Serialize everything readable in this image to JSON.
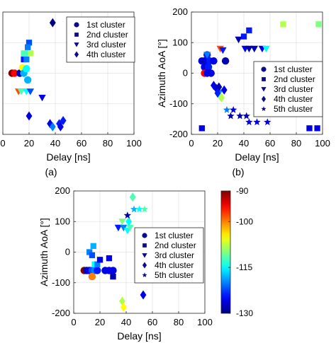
{
  "colorbar": {
    "ticks": [
      -90,
      -100,
      -115,
      -130
    ],
    "range": [
      -130,
      -90
    ]
  },
  "chart_data": [
    {
      "id": "a",
      "type": "scatter",
      "panel_label": "(a)",
      "xlabel": "Delay [ns]",
      "ylabel": "",
      "xlim": [
        0,
        100
      ],
      "ylim": [
        -200,
        200
      ],
      "xticks": [
        0,
        20,
        40,
        60,
        80,
        100
      ],
      "yticks": [],
      "grid": true,
      "legend_position": "top-right",
      "legend": [
        "1st cluster",
        "2nd cluster",
        "3rd cluster",
        "4th cluster"
      ],
      "series": [
        {
          "name": "1st cluster",
          "marker": "circle",
          "points": [
            {
              "x": 7,
              "y": 0,
              "c": -90
            },
            {
              "x": 9,
              "y": 0,
              "c": -95
            },
            {
              "x": 13,
              "y": 0,
              "c": -128
            },
            {
              "x": 15,
              "y": 18,
              "c": -105
            },
            {
              "x": 16,
              "y": 0,
              "c": -118
            },
            {
              "x": 18,
              "y": 15,
              "c": -115
            },
            {
              "x": 19,
              "y": -22,
              "c": -118
            }
          ]
        },
        {
          "name": "2nd cluster",
          "marker": "square",
          "points": [
            {
              "x": 20,
              "y": 100,
              "c": -122
            },
            {
              "x": 19,
              "y": 85,
              "c": -120
            },
            {
              "x": 18,
              "y": 65,
              "c": -115
            },
            {
              "x": 16,
              "y": 65,
              "c": -112
            },
            {
              "x": 21,
              "y": 65,
              "c": -108
            },
            {
              "x": 16,
              "y": 45,
              "c": -124
            },
            {
              "x": 18,
              "y": 45,
              "c": -120
            }
          ]
        },
        {
          "name": "3rd cluster",
          "marker": "triangle",
          "points": [
            {
              "x": 12,
              "y": -60,
              "c": -98
            },
            {
              "x": 14,
              "y": -60,
              "c": -112
            },
            {
              "x": 18,
              "y": -60,
              "c": -115
            },
            {
              "x": 21,
              "y": -60,
              "c": -122
            },
            {
              "x": 30,
              "y": -80,
              "c": -126
            }
          ]
        },
        {
          "name": "4th cluster",
          "marker": "diamond",
          "points": [
            {
              "x": 38,
              "y": 165,
              "c": -130
            },
            {
              "x": 20,
              "y": -140,
              "c": -126
            },
            {
              "x": 36,
              "y": -165,
              "c": -126
            },
            {
              "x": 38,
              "y": -175,
              "c": -120
            },
            {
              "x": 43,
              "y": -165,
              "c": -124
            },
            {
              "x": 44,
              "y": -175,
              "c": -126
            },
            {
              "x": 46,
              "y": -155,
              "c": -124
            }
          ]
        }
      ]
    },
    {
      "id": "b",
      "type": "scatter",
      "panel_label": "(b)",
      "xlabel": "Delay [ns]",
      "ylabel": "Azimuth AoA [°]",
      "xlim": [
        0,
        100
      ],
      "ylim": [
        -200,
        200
      ],
      "xticks": [
        0,
        20,
        40,
        60,
        80,
        100
      ],
      "yticks": [
        -200,
        -100,
        0,
        100,
        200
      ],
      "grid": true,
      "legend_position": "bottom-right",
      "legend": [
        "1st cluster",
        "2nd cluster",
        "3rd cluster",
        "4th cluster",
        "5th cluster"
      ],
      "series": [
        {
          "name": "1st cluster",
          "marker": "circle",
          "points": [
            {
              "x": 8,
              "y": 40,
              "c": -126
            },
            {
              "x": 10,
              "y": 40,
              "c": -128
            },
            {
              "x": 12,
              "y": 40,
              "c": -126
            },
            {
              "x": 14,
              "y": 40,
              "c": -124
            },
            {
              "x": 17,
              "y": 40,
              "c": -126
            },
            {
              "x": 10,
              "y": 20,
              "c": -126
            },
            {
              "x": 13,
              "y": 20,
              "c": -124
            },
            {
              "x": 10,
              "y": 0,
              "c": -95
            },
            {
              "x": 12,
              "y": 0,
              "c": -126
            },
            {
              "x": 15,
              "y": 0,
              "c": -126
            },
            {
              "x": 26,
              "y": 40,
              "c": -128
            },
            {
              "x": 12,
              "y": 60,
              "c": -124
            }
          ]
        },
        {
          "name": "2nd cluster",
          "marker": "square",
          "points": [
            {
              "x": 8,
              "y": -180,
              "c": -126
            },
            {
              "x": 40,
              "y": 120,
              "c": -124
            },
            {
              "x": 44,
              "y": 140,
              "c": -124
            },
            {
              "x": 70,
              "y": 160,
              "c": -108
            },
            {
              "x": 97,
              "y": 160,
              "c": -110
            },
            {
              "x": 90,
              "y": -180,
              "c": -126
            },
            {
              "x": 96,
              "y": -180,
              "c": -126
            }
          ]
        },
        {
          "name": "3rd cluster",
          "marker": "triangle",
          "points": [
            {
              "x": 12,
              "y": 60,
              "c": -120
            },
            {
              "x": 22,
              "y": 80,
              "c": -98
            },
            {
              "x": 24,
              "y": 75,
              "c": -124
            },
            {
              "x": 36,
              "y": 110,
              "c": -128
            },
            {
              "x": 41,
              "y": 80,
              "c": -126
            },
            {
              "x": 44,
              "y": 80,
              "c": -128
            },
            {
              "x": 48,
              "y": 80,
              "c": -128
            },
            {
              "x": 54,
              "y": 80,
              "c": -126
            },
            {
              "x": 57,
              "y": 80,
              "c": -115
            }
          ]
        },
        {
          "name": "4th cluster",
          "marker": "diamond",
          "points": [
            {
              "x": 17,
              "y": -40,
              "c": -126
            },
            {
              "x": 19,
              "y": -50,
              "c": -126
            },
            {
              "x": 21,
              "y": -60,
              "c": -120
            },
            {
              "x": 22,
              "y": -75,
              "c": -112
            },
            {
              "x": 23,
              "y": -80,
              "c": -108
            },
            {
              "x": 21,
              "y": -45,
              "c": -128
            },
            {
              "x": 25,
              "y": -55,
              "c": -126
            },
            {
              "x": 20,
              "y": -65,
              "c": -124
            }
          ]
        },
        {
          "name": "5th cluster",
          "marker": "star",
          "points": [
            {
              "x": 27,
              "y": -120,
              "c": -120
            },
            {
              "x": 32,
              "y": -120,
              "c": -126
            },
            {
              "x": 30,
              "y": -140,
              "c": -128
            },
            {
              "x": 37,
              "y": -140,
              "c": -128
            },
            {
              "x": 42,
              "y": -140,
              "c": -128
            },
            {
              "x": 44,
              "y": -160,
              "c": -126
            },
            {
              "x": 50,
              "y": -160,
              "c": -126
            },
            {
              "x": 58,
              "y": -160,
              "c": -126
            }
          ]
        }
      ]
    },
    {
      "id": "c",
      "type": "scatter",
      "panel_label": "",
      "xlabel": "Delay [ns]",
      "ylabel": "Azimuth AoA [°]",
      "xlim": [
        0,
        100
      ],
      "ylim": [
        -200,
        200
      ],
      "xticks": [
        0,
        20,
        40,
        60,
        80,
        100
      ],
      "yticks": [
        -200,
        -100,
        0,
        100,
        200
      ],
      "grid": true,
      "legend_position": "center-right",
      "legend": [
        "1st cluster",
        "2nd cluster",
        "3rd cluster",
        "4th cluster",
        "5th cluster"
      ],
      "series": [
        {
          "name": "1st cluster",
          "marker": "circle",
          "points": [
            {
              "x": 8,
              "y": -60,
              "c": -90
            },
            {
              "x": 10,
              "y": -60,
              "c": -128
            },
            {
              "x": 12,
              "y": -60,
              "c": -126
            },
            {
              "x": 14,
              "y": -60,
              "c": -122
            },
            {
              "x": 16,
              "y": -60,
              "c": -120
            },
            {
              "x": 18,
              "y": -60,
              "c": -124
            },
            {
              "x": 14,
              "y": -80,
              "c": -100
            },
            {
              "x": 24,
              "y": -60,
              "c": -126
            },
            {
              "x": 27,
              "y": -60,
              "c": -126
            },
            {
              "x": 30,
              "y": -60,
              "c": -126
            }
          ]
        },
        {
          "name": "2nd cluster",
          "marker": "square",
          "points": [
            {
              "x": 12,
              "y": 0,
              "c": -120
            },
            {
              "x": 15,
              "y": 20,
              "c": -118
            },
            {
              "x": 14,
              "y": -10,
              "c": -122
            },
            {
              "x": 16,
              "y": -40,
              "c": -115
            },
            {
              "x": 18,
              "y": -40,
              "c": -120
            },
            {
              "x": 20,
              "y": -25,
              "c": -126
            },
            {
              "x": 27,
              "y": -20,
              "c": -126
            },
            {
              "x": 30,
              "y": -80,
              "c": -128
            }
          ]
        },
        {
          "name": "3rd cluster",
          "marker": "triangle",
          "points": [
            {
              "x": 34,
              "y": 80,
              "c": -124
            },
            {
              "x": 38,
              "y": 80,
              "c": -120
            },
            {
              "x": 41,
              "y": 70,
              "c": -115
            },
            {
              "x": 43,
              "y": 80,
              "c": -112
            },
            {
              "x": 37,
              "y": 100,
              "c": -110
            }
          ]
        },
        {
          "name": "4th cluster",
          "marker": "diamond",
          "points": [
            {
              "x": 45,
              "y": 180,
              "c": -112
            },
            {
              "x": 42,
              "y": 100,
              "c": -115
            },
            {
              "x": 37,
              "y": -160,
              "c": -108
            },
            {
              "x": 38,
              "y": -180,
              "c": -105
            },
            {
              "x": 53,
              "y": -140,
              "c": -126
            }
          ]
        },
        {
          "name": "5th cluster",
          "marker": "star",
          "points": [
            {
              "x": 41,
              "y": 120,
              "c": -128
            },
            {
              "x": 46,
              "y": 140,
              "c": -118
            },
            {
              "x": 50,
              "y": 140,
              "c": -115
            },
            {
              "x": 54,
              "y": 140,
              "c": -112
            }
          ]
        }
      ]
    }
  ]
}
